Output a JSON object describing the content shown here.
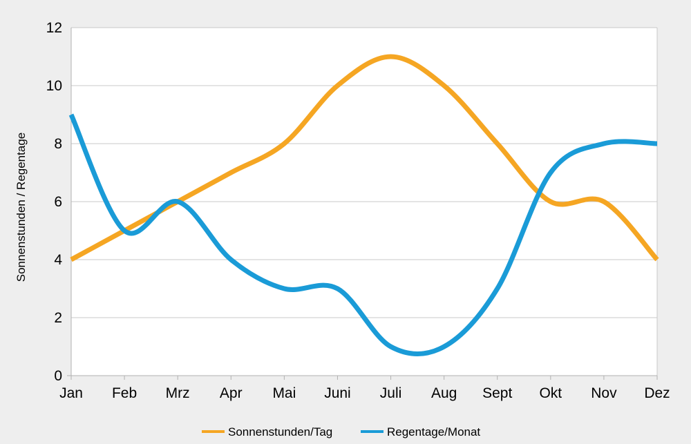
{
  "chart_data": {
    "type": "line",
    "title": "",
    "xlabel": "",
    "ylabel": "Sonnenstunden / Regentage",
    "categories": [
      "Jan",
      "Feb",
      "Mrz",
      "Apr",
      "Mai",
      "Juni",
      "Juli",
      "Aug",
      "Sept",
      "Okt",
      "Nov",
      "Dez"
    ],
    "ylim": [
      0,
      12
    ],
    "yticks": [
      0,
      2,
      4,
      6,
      8,
      10,
      12
    ],
    "grid": true,
    "smooth": true,
    "legend_position": "bottom",
    "series": [
      {
        "name": "Sonnenstunden/Tag",
        "color": "#f5a623",
        "values": [
          4,
          5,
          6,
          7,
          8,
          10,
          11,
          10,
          8,
          6,
          6,
          4
        ]
      },
      {
        "name": "Regentage/Monat",
        "color": "#1a9bd7",
        "values": [
          9,
          5,
          6,
          4,
          3,
          3,
          1,
          1,
          3,
          7,
          8,
          8
        ]
      }
    ]
  }
}
